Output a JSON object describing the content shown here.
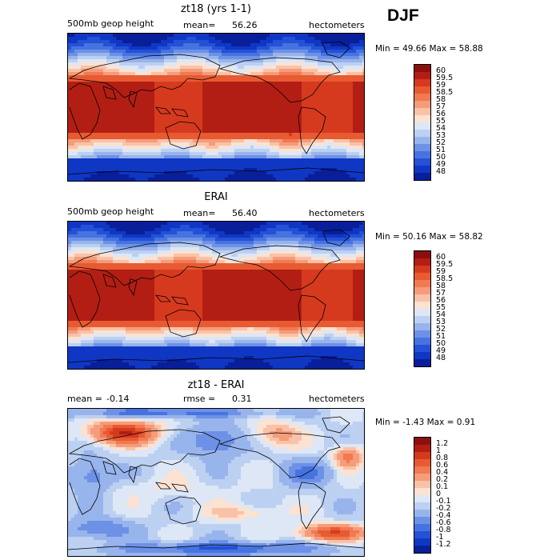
{
  "season": "DJF",
  "panels": [
    {
      "title": "zt18 (yrs 1-1)",
      "left_label": "500mb geop height",
      "stat_label": "mean=",
      "stat_value": "56.26",
      "stat2_label": "",
      "stat2_value": "",
      "units": "hectometers",
      "minmax": "Min =   49.66 Max =   58.88",
      "map_kind": "field",
      "colorbar": {
        "labels": [
          "60",
          "59.5",
          "59",
          "58.5",
          "58",
          "57",
          "56",
          "55",
          "54",
          "53",
          "52",
          "51",
          "50",
          "49",
          "48"
        ],
        "colors": [
          "#8c0f0f",
          "#b21e14",
          "#d63a1e",
          "#e85a32",
          "#f07a52",
          "#f59c7a",
          "#f9c2a8",
          "#fbe2d2",
          "#dde7f6",
          "#bcd0f1",
          "#98b4ec",
          "#6d91e6",
          "#4673e0",
          "#2451d6",
          "#1037c4",
          "#081f99"
        ]
      }
    },
    {
      "title": "ERAI",
      "left_label": "500mb geop height",
      "stat_label": "mean=",
      "stat_value": "56.40",
      "stat2_label": "",
      "stat2_value": "",
      "units": "hectometers",
      "minmax": "Min =   50.16 Max =   58.82",
      "map_kind": "field",
      "colorbar": {
        "labels": [
          "60",
          "59.5",
          "59",
          "58.5",
          "58",
          "57",
          "56",
          "55",
          "54",
          "53",
          "52",
          "51",
          "50",
          "49",
          "48"
        ],
        "colors": [
          "#8c0f0f",
          "#b21e14",
          "#d63a1e",
          "#e85a32",
          "#f07a52",
          "#f59c7a",
          "#f9c2a8",
          "#fbe2d2",
          "#dde7f6",
          "#bcd0f1",
          "#98b4ec",
          "#6d91e6",
          "#4673e0",
          "#2451d6",
          "#1037c4",
          "#081f99"
        ]
      }
    },
    {
      "title": "zt18 - ERAI",
      "left_label": "mean =",
      "stat_label": "",
      "stat_value": "-0.14",
      "stat2_label": "rmse =",
      "stat2_value": "0.31",
      "units": "hectometers",
      "minmax": "Min =  -1.43 Max =    0.91",
      "map_kind": "diff",
      "colorbar": {
        "labels": [
          "1.2",
          "1",
          "0.8",
          "0.6",
          "0.4",
          "0.2",
          "0.1",
          "0",
          "-0.1",
          "-0.2",
          "-0.4",
          "-0.6",
          "-0.8",
          "-1",
          "-1.2"
        ],
        "colors": [
          "#8c0f0f",
          "#b21e14",
          "#d63a1e",
          "#e85a32",
          "#f07a52",
          "#f59c7a",
          "#f9c2a8",
          "#fbe2d2",
          "#dde7f6",
          "#bcd0f1",
          "#98b4ec",
          "#6d91e6",
          "#4673e0",
          "#2451d6",
          "#1037c4",
          "#081f99"
        ]
      }
    }
  ]
}
